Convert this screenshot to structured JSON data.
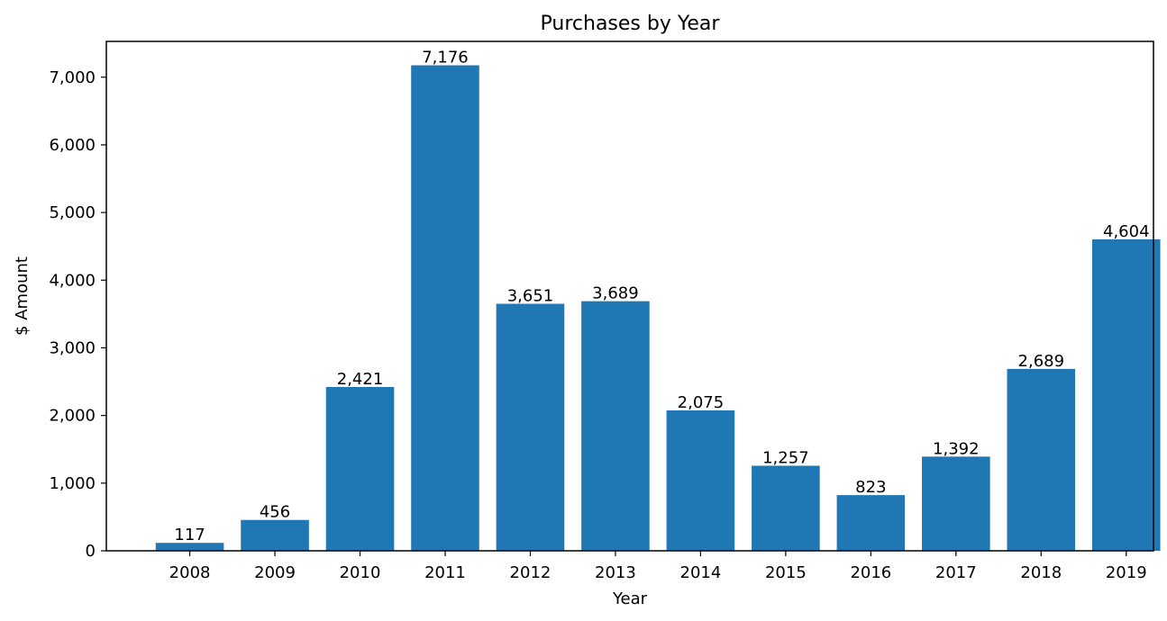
{
  "chart_data": {
    "type": "bar",
    "title": "Purchases by Year",
    "xlabel": "Year",
    "ylabel": "$ Amount",
    "categories": [
      "2008",
      "2009",
      "2010",
      "2011",
      "2012",
      "2013",
      "2014",
      "2015",
      "2016",
      "2017",
      "2018",
      "2019"
    ],
    "values": [
      117,
      456,
      2421,
      7176,
      3651,
      3689,
      2075,
      1257,
      823,
      1392,
      2689,
      4604
    ],
    "value_labels": [
      "117",
      "456",
      "2,421",
      "7,176",
      "3,651",
      "3,689",
      "2,075",
      "1,257",
      "823",
      "1,392",
      "2,689",
      "4,604"
    ],
    "ylim": [
      0,
      7529
    ],
    "yticks": [
      0,
      1000,
      2000,
      3000,
      4000,
      5000,
      6000,
      7000
    ],
    "ytick_labels": [
      "0",
      "1,000",
      "2,000",
      "3,000",
      "4,000",
      "5,000",
      "6,000",
      "7,000"
    ],
    "bar_color": "#1f77b4",
    "grid": false,
    "legend": "none"
  }
}
